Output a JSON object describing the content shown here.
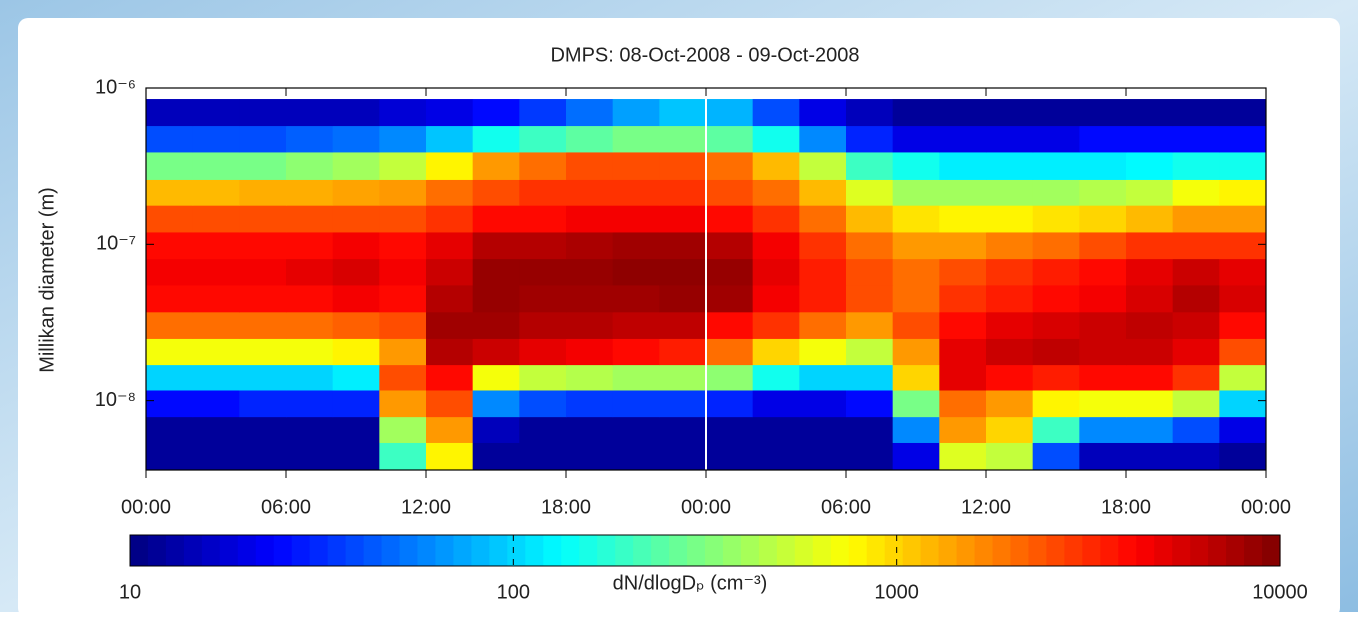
{
  "chart_data": {
    "type": "heatmap",
    "title": "DMPS: 08-Oct-2008 - 09-Oct-2008",
    "y_label": "Millikan diameter (m)",
    "colorbar_label": "dN/dlogDₚ (cm⁻³)",
    "colormap": "jet",
    "x_edges": [
      0,
      2,
      4,
      6,
      8,
      10,
      12,
      14,
      16,
      18,
      20,
      22,
      24,
      26,
      28,
      30,
      32,
      34,
      36,
      38,
      40,
      42,
      44,
      46,
      48
    ],
    "y_edges": [
      3.6e-09,
      5.4e-09,
      7.9e-09,
      1.17e-08,
      1.7e-08,
      2.5e-08,
      3.7e-08,
      5.5e-08,
      8.1e-08,
      1.2e-07,
      1.78e-07,
      2.6e-07,
      3.9e-07,
      5.75e-07,
      8.5e-07
    ],
    "z": [
      [
        12,
        12,
        12,
        12,
        12,
        200,
        800,
        12,
        12,
        12,
        12,
        12,
        12,
        12,
        12,
        12,
        20,
        600,
        500,
        40,
        15,
        15,
        15,
        12
      ],
      [
        12,
        12,
        12,
        12,
        12,
        400,
        1500,
        15,
        12,
        12,
        12,
        12,
        12,
        12,
        12,
        12,
        60,
        1500,
        1000,
        200,
        60,
        60,
        40,
        20
      ],
      [
        25,
        25,
        30,
        30,
        30,
        1500,
        2500,
        60,
        40,
        35,
        35,
        35,
        30,
        20,
        20,
        25,
        300,
        2000,
        1500,
        800,
        700,
        700,
        500,
        100
      ],
      [
        100,
        100,
        100,
        100,
        120,
        2500,
        4000,
        700,
        500,
        450,
        400,
        400,
        350,
        150,
        100,
        100,
        1000,
        5000,
        4000,
        3500,
        4000,
        4000,
        3000,
        500
      ],
      [
        700,
        700,
        700,
        700,
        800,
        1500,
        7000,
        6000,
        5000,
        4500,
        4000,
        3500,
        2000,
        1000,
        700,
        500,
        1500,
        5000,
        6000,
        6500,
        6000,
        6000,
        5000,
        2500
      ],
      [
        2000,
        2000,
        2000,
        2000,
        2200,
        2500,
        8000,
        8000,
        7000,
        7000,
        6500,
        6500,
        4000,
        3000,
        2000,
        1500,
        2500,
        4000,
        5000,
        5500,
        6000,
        6500,
        6000,
        4000
      ],
      [
        4000,
        4000,
        4000,
        4000,
        4500,
        4000,
        7000,
        8500,
        8000,
        8000,
        8000,
        8500,
        8000,
        4500,
        3500,
        2500,
        2000,
        3000,
        3500,
        4000,
        4500,
        5500,
        7000,
        5500
      ],
      [
        4500,
        4500,
        4500,
        5000,
        5500,
        4500,
        6000,
        8500,
        8500,
        8500,
        9000,
        9000,
        8500,
        5000,
        3500,
        2500,
        2000,
        2500,
        3000,
        3500,
        4000,
        5000,
        6000,
        5000
      ],
      [
        4000,
        4000,
        4000,
        4000,
        4500,
        4000,
        5000,
        7000,
        7000,
        7500,
        8000,
        8000,
        7000,
        4500,
        3000,
        2000,
        1500,
        1500,
        1800,
        2000,
        2500,
        3000,
        3000,
        3000
      ],
      [
        2500,
        2500,
        2500,
        2500,
        2500,
        2500,
        3000,
        4000,
        4000,
        4500,
        4500,
        4500,
        4000,
        3000,
        2000,
        1200,
        900,
        800,
        800,
        900,
        1000,
        1200,
        1500,
        1500
      ],
      [
        1200,
        1200,
        1300,
        1300,
        1400,
        1500,
        2000,
        2500,
        3000,
        3000,
        3000,
        3000,
        2500,
        2000,
        1200,
        600,
        400,
        400,
        400,
        400,
        450,
        500,
        700,
        800
      ],
      [
        300,
        300,
        300,
        350,
        400,
        500,
        800,
        1500,
        2000,
        2500,
        2500,
        2500,
        2000,
        1200,
        500,
        200,
        150,
        120,
        120,
        120,
        120,
        130,
        150,
        150
      ],
      [
        40,
        40,
        40,
        45,
        50,
        60,
        90,
        150,
        200,
        250,
        300,
        300,
        250,
        150,
        60,
        30,
        20,
        20,
        20,
        20,
        25,
        25,
        25,
        25
      ],
      [
        15,
        15,
        15,
        15,
        15,
        18,
        20,
        25,
        35,
        50,
        70,
        90,
        80,
        40,
        20,
        15,
        12,
        12,
        12,
        12,
        12,
        12,
        12,
        12
      ]
    ],
    "xlim": [
      0,
      48
    ],
    "xticks": [
      {
        "value": 0,
        "label": "00:00"
      },
      {
        "value": 6,
        "label": "06:00"
      },
      {
        "value": 12,
        "label": "12:00"
      },
      {
        "value": 18,
        "label": "18:00"
      },
      {
        "value": 24,
        "label": "00:00"
      },
      {
        "value": 30,
        "label": "06:00"
      },
      {
        "value": 36,
        "label": "12:00"
      },
      {
        "value": 42,
        "label": "18:00"
      },
      {
        "value": 48,
        "label": "00:00"
      }
    ],
    "ylim": [
      3.6e-09,
      1e-06
    ],
    "yticks": [
      {
        "value": 1e-08,
        "label": "10⁻⁸"
      },
      {
        "value": 1e-07,
        "label": "10⁻⁷"
      },
      {
        "value": 1e-06,
        "label": "10⁻⁶"
      }
    ],
    "y_log": true,
    "clim": [
      10,
      10000
    ],
    "cticks": [
      10,
      100,
      1000,
      10000
    ],
    "c_log": true
  }
}
